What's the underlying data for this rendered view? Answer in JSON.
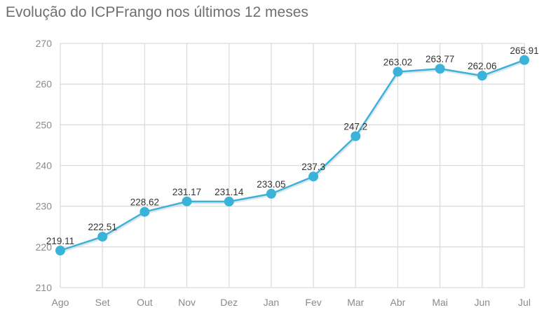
{
  "chart": {
    "title": "Evolução do ICPFrango nos últimos 12 meses"
  },
  "colors": {
    "line": "#3bb3d8",
    "marker": "#3bb3d8",
    "grid": "#dcdcdc",
    "axis_text": "#8a8a8a",
    "label_text": "#333333",
    "title_text": "#6f6f6f"
  },
  "chart_data": {
    "type": "line",
    "title": "Evolução do ICPFrango nos últimos 12 meses",
    "xlabel": "",
    "ylabel": "",
    "categories": [
      "Ago",
      "Set",
      "Out",
      "Nov",
      "Dez",
      "Jan",
      "Fev",
      "Mar",
      "Abr",
      "Mai",
      "Jun",
      "Jul"
    ],
    "series": [
      {
        "name": "ICPFrango",
        "values": [
          219.11,
          222.51,
          228.62,
          231.17,
          231.14,
          233.05,
          237.3,
          247.2,
          263.02,
          263.77,
          262.06,
          265.91
        ],
        "labels": [
          "219.11",
          "222.51",
          "228.62",
          "231.17",
          "231.14",
          "233.05",
          "237.3",
          "247.2",
          "263.02",
          "263.77",
          "262.06",
          "265.91"
        ]
      }
    ],
    "ylim": [
      210,
      270
    ],
    "yticks": [
      210,
      220,
      230,
      240,
      250,
      260,
      270
    ],
    "grid": true,
    "legend": "none",
    "data_labels": true
  }
}
